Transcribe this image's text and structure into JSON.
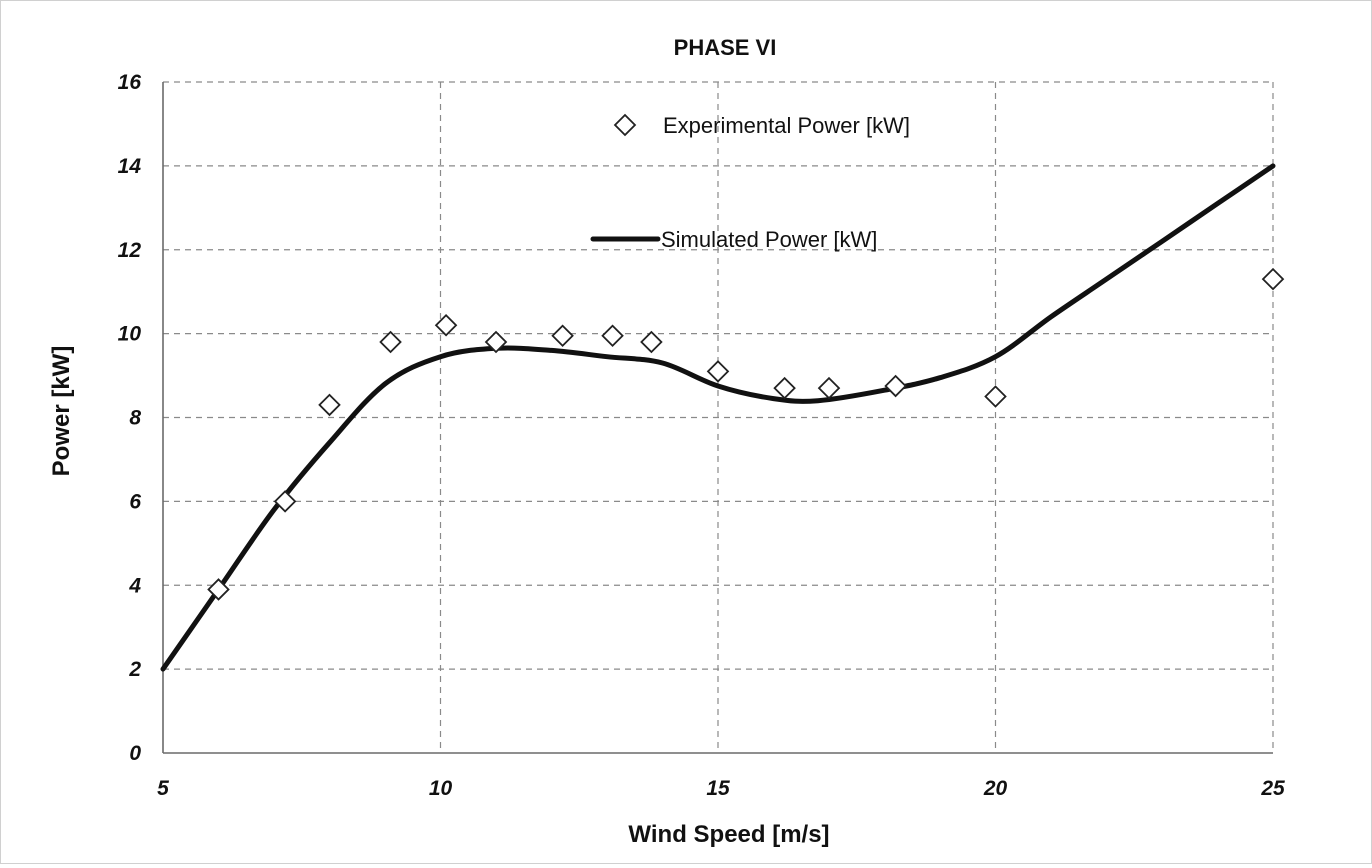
{
  "chart_data": {
    "type": "scatter+line",
    "title": "PHASE VI",
    "xlabel": "Wind Speed [m/s]",
    "ylabel": "Power [kW]",
    "xlim": [
      5,
      25
    ],
    "ylim": [
      0,
      16
    ],
    "x_ticks": [
      5,
      10,
      15,
      20,
      25
    ],
    "y_ticks": [
      0,
      2,
      4,
      6,
      8,
      10,
      12,
      14,
      16
    ],
    "grid": true,
    "legend_position": "top-center, inside plot",
    "series": [
      {
        "name": "Experimental Power [kW]",
        "kind": "scatter",
        "marker": "hollow-diamond",
        "color": "#222222",
        "x": [
          6.0,
          7.2,
          8.0,
          9.1,
          10.1,
          11.0,
          12.2,
          13.1,
          13.8,
          15.0,
          16.2,
          17.0,
          18.2,
          20.0,
          25.0
        ],
        "y": [
          3.9,
          6.0,
          8.3,
          9.8,
          10.2,
          9.8,
          9.95,
          9.95,
          9.8,
          9.1,
          8.7,
          8.7,
          8.75,
          8.5,
          11.3
        ]
      },
      {
        "name": "Simulated Power [kW]",
        "kind": "line",
        "color": "#111111",
        "x": [
          5.0,
          6.0,
          7.0,
          8.0,
          9.0,
          10.0,
          11.0,
          12.0,
          13.0,
          14.0,
          15.0,
          16.0,
          16.8,
          18.0,
          19.0,
          20.0,
          21.0,
          22.0,
          23.0,
          24.0,
          25.0
        ],
        "y": [
          2.0,
          3.9,
          5.8,
          7.4,
          8.8,
          9.45,
          9.65,
          9.6,
          9.45,
          9.3,
          8.75,
          8.45,
          8.4,
          8.65,
          8.95,
          9.45,
          10.4,
          11.3,
          12.2,
          13.1,
          14.0
        ]
      }
    ]
  }
}
